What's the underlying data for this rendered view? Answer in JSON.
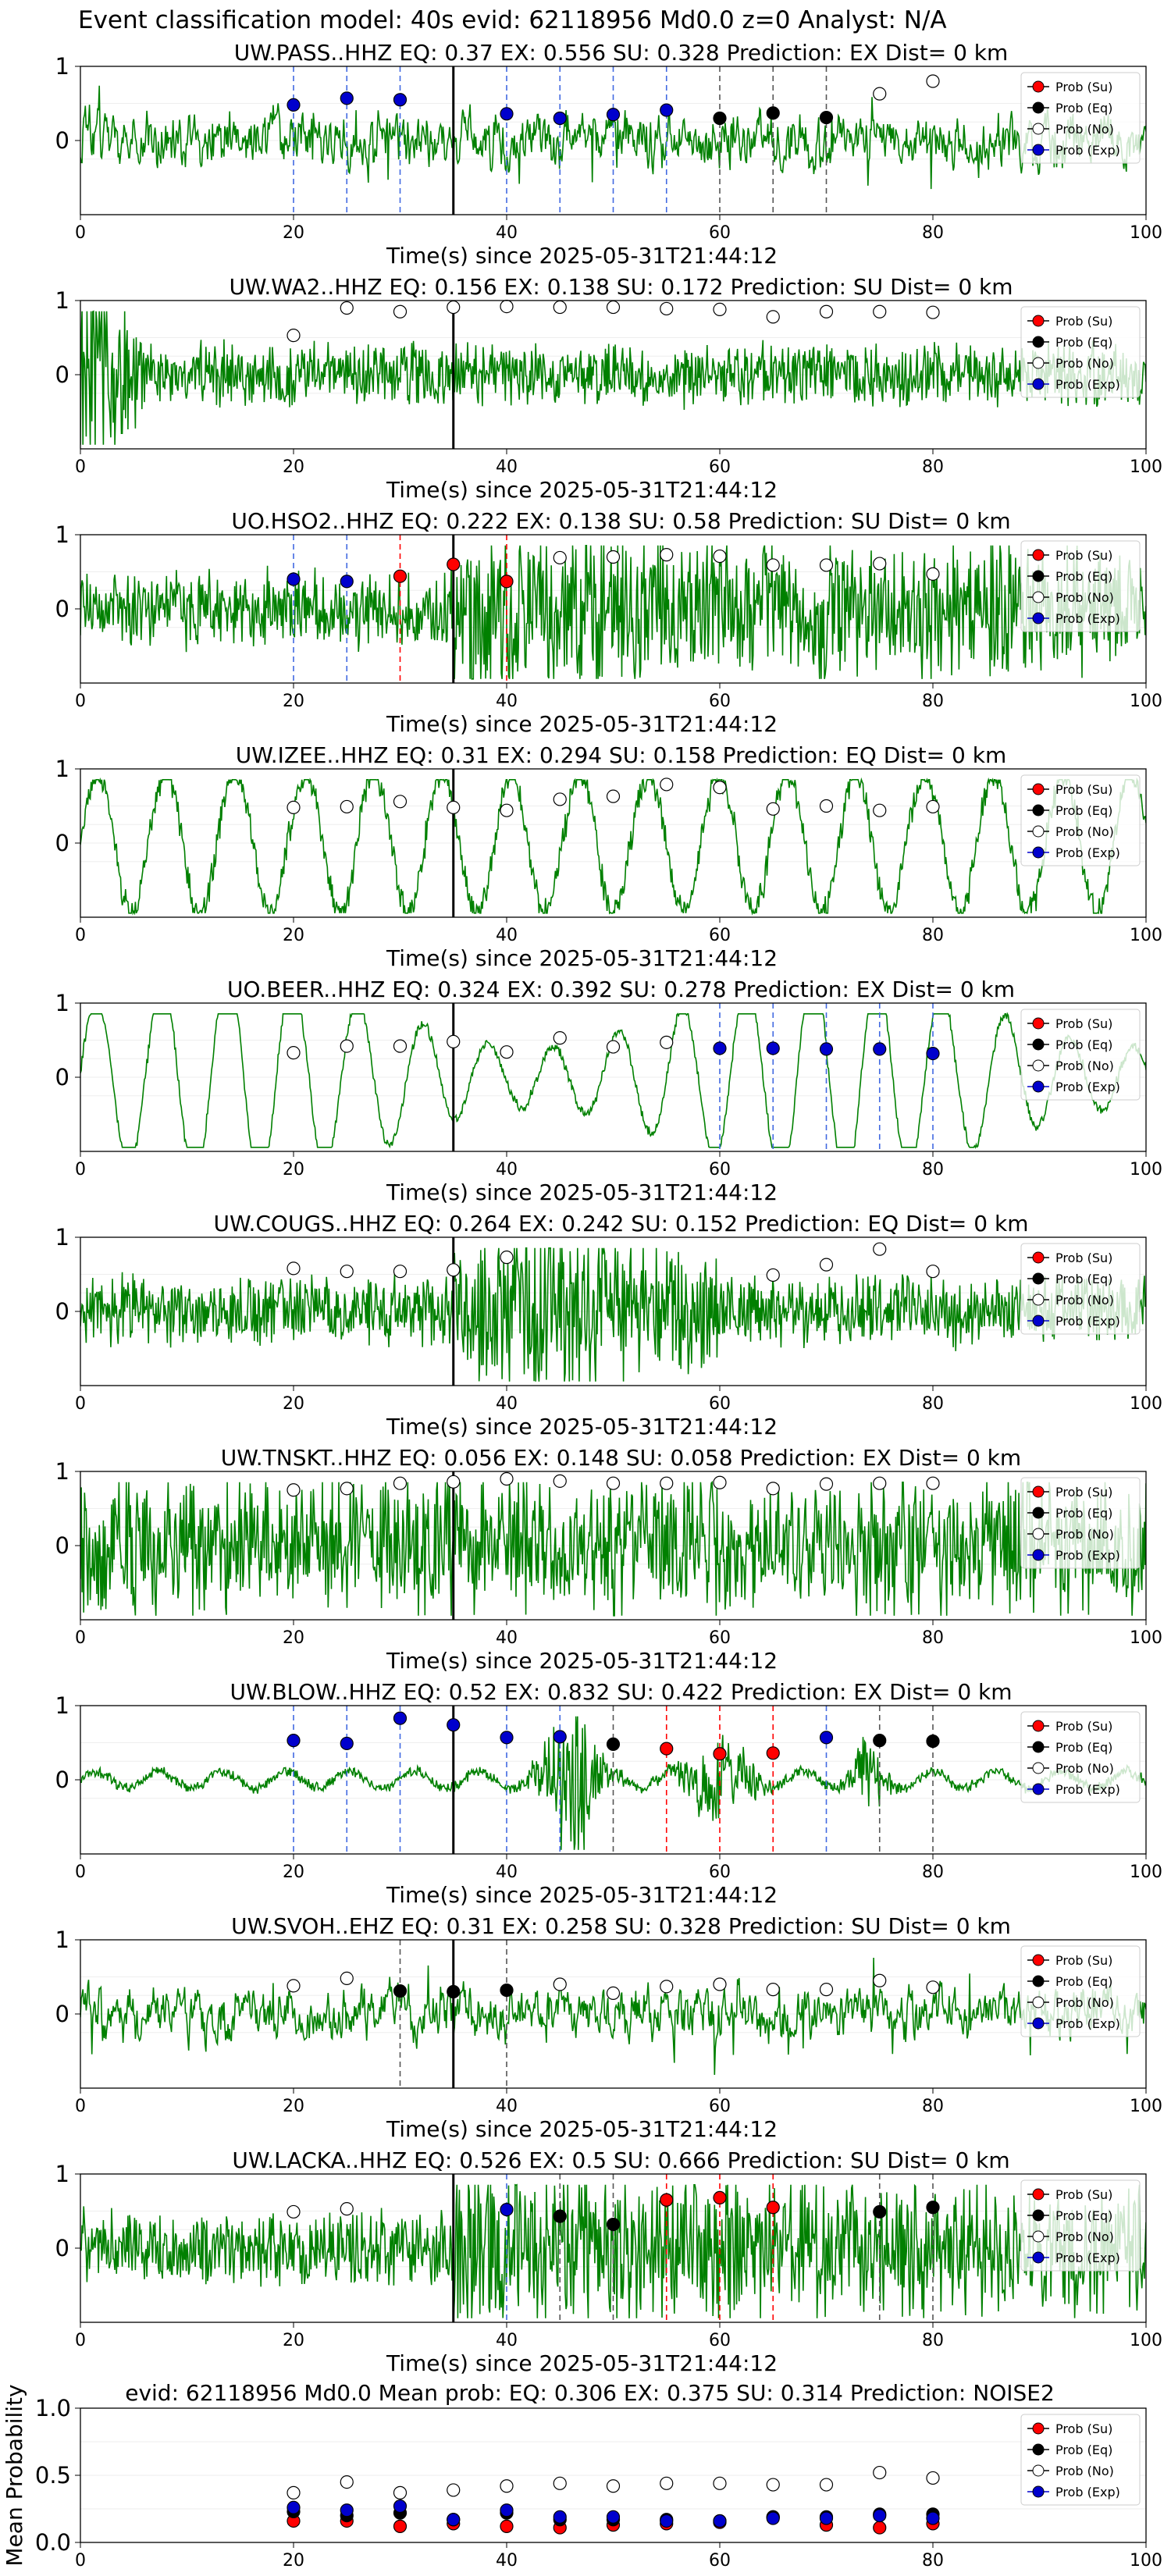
{
  "figure": {
    "suptitle": "Event classification model: 40s evid: 62118956 Md0.0 z=0 Analyst: N/A",
    "xlabel": "Time(s) since 2025-05-31T21:44:12",
    "legend": [
      "Prob (Su)",
      "Prob (Eq)",
      "Prob (No)",
      "Prob (Exp)"
    ],
    "colors": {
      "trace": "#008000",
      "su": "#ff0000",
      "eq": "#000000",
      "no": "#ffffff",
      "exp": "#0000cd",
      "exp_line": "#4169e1",
      "onset": "#000000"
    }
  },
  "chart_data": [
    {
      "type": "line",
      "title": "UW.PASS..HHZ   EQ: 0.37  EX: 0.556  SU: 0.328    Prediction: EX    Dist= 0 km",
      "xlim": [
        0,
        100
      ],
      "yticks": [
        "1",
        "0"
      ],
      "xticks": [
        "0",
        "20",
        "40",
        "60",
        "80",
        "100"
      ],
      "onset": 35,
      "seed": 11,
      "style": "spiky",
      "amp": 0.22,
      "points": [
        {
          "x": 20,
          "y": 0.48,
          "c": "exp"
        },
        {
          "x": 25,
          "y": 0.57,
          "c": "exp"
        },
        {
          "x": 30,
          "y": 0.55,
          "c": "exp"
        },
        {
          "x": 40,
          "y": 0.36,
          "c": "exp"
        },
        {
          "x": 45,
          "y": 0.3,
          "c": "exp"
        },
        {
          "x": 50,
          "y": 0.35,
          "c": "exp"
        },
        {
          "x": 55,
          "y": 0.41,
          "c": "exp"
        },
        {
          "x": 60,
          "y": 0.3,
          "c": "eq"
        },
        {
          "x": 65,
          "y": 0.37,
          "c": "eq"
        },
        {
          "x": 70,
          "y": 0.31,
          "c": "eq"
        },
        {
          "x": 75,
          "y": 0.63,
          "c": "no"
        },
        {
          "x": 80,
          "y": 0.8,
          "c": "no"
        }
      ]
    },
    {
      "type": "line",
      "title": "UW.WA2..HHZ   EQ: 0.156  EX: 0.138  SU: 0.172    Prediction: SU    Dist= 0 km",
      "xlim": [
        0,
        100
      ],
      "yticks": [
        "1",
        "0"
      ],
      "xticks": [
        "0",
        "20",
        "40",
        "60",
        "80",
        "100"
      ],
      "onset": 35,
      "seed": 23,
      "style": "decay",
      "amp": 0.2,
      "points": [
        {
          "x": 20,
          "y": 0.53,
          "c": "no"
        },
        {
          "x": 25,
          "y": 0.9,
          "c": "no"
        },
        {
          "x": 30,
          "y": 0.85,
          "c": "no"
        },
        {
          "x": 35,
          "y": 0.91,
          "c": "no"
        },
        {
          "x": 40,
          "y": 0.92,
          "c": "no"
        },
        {
          "x": 45,
          "y": 0.91,
          "c": "no"
        },
        {
          "x": 50,
          "y": 0.91,
          "c": "no"
        },
        {
          "x": 55,
          "y": 0.89,
          "c": "no"
        },
        {
          "x": 60,
          "y": 0.88,
          "c": "no"
        },
        {
          "x": 65,
          "y": 0.78,
          "c": "no"
        },
        {
          "x": 70,
          "y": 0.85,
          "c": "no"
        },
        {
          "x": 75,
          "y": 0.85,
          "c": "no"
        },
        {
          "x": 80,
          "y": 0.84,
          "c": "no"
        }
      ]
    },
    {
      "type": "line",
      "title": "UO.HSO2..HHZ   EQ: 0.222  EX: 0.138  SU: 0.58    Prediction: SU    Dist= 0 km",
      "xlim": [
        0,
        100
      ],
      "yticks": [
        "1",
        "0"
      ],
      "xticks": [
        "0",
        "20",
        "40",
        "60",
        "80",
        "100"
      ],
      "onset": 35,
      "seed": 37,
      "style": "burst",
      "amp": 0.25,
      "points": [
        {
          "x": 20,
          "y": 0.4,
          "c": "exp"
        },
        {
          "x": 25,
          "y": 0.37,
          "c": "exp"
        },
        {
          "x": 30,
          "y": 0.44,
          "c": "su"
        },
        {
          "x": 35,
          "y": 0.6,
          "c": "su"
        },
        {
          "x": 40,
          "y": 0.37,
          "c": "su"
        },
        {
          "x": 45,
          "y": 0.69,
          "c": "no"
        },
        {
          "x": 50,
          "y": 0.7,
          "c": "no"
        },
        {
          "x": 55,
          "y": 0.73,
          "c": "no"
        },
        {
          "x": 60,
          "y": 0.71,
          "c": "no"
        },
        {
          "x": 65,
          "y": 0.59,
          "c": "no"
        },
        {
          "x": 70,
          "y": 0.59,
          "c": "no"
        },
        {
          "x": 75,
          "y": 0.61,
          "c": "no"
        },
        {
          "x": 80,
          "y": 0.47,
          "c": "no"
        }
      ]
    },
    {
      "type": "line",
      "title": "UW.IZEE..HHZ   EQ: 0.31  EX: 0.294  SU: 0.158    Prediction: EQ    Dist= 0 km",
      "xlim": [
        0,
        100
      ],
      "yticks": [
        "1",
        "0"
      ],
      "xticks": [
        "0",
        "20",
        "40",
        "60",
        "80",
        "100"
      ],
      "onset": 35,
      "seed": 41,
      "style": "wavy",
      "amp": 0.4,
      "points": [
        {
          "x": 20,
          "y": 0.48,
          "c": "no"
        },
        {
          "x": 25,
          "y": 0.49,
          "c": "no"
        },
        {
          "x": 30,
          "y": 0.56,
          "c": "no"
        },
        {
          "x": 35,
          "y": 0.48,
          "c": "no"
        },
        {
          "x": 40,
          "y": 0.44,
          "c": "no"
        },
        {
          "x": 45,
          "y": 0.59,
          "c": "no"
        },
        {
          "x": 50,
          "y": 0.63,
          "c": "no"
        },
        {
          "x": 55,
          "y": 0.79,
          "c": "no"
        },
        {
          "x": 60,
          "y": 0.75,
          "c": "no"
        },
        {
          "x": 65,
          "y": 0.46,
          "c": "no"
        },
        {
          "x": 70,
          "y": 0.5,
          "c": "no"
        },
        {
          "x": 75,
          "y": 0.44,
          "c": "no"
        },
        {
          "x": 80,
          "y": 0.49,
          "c": "no"
        }
      ]
    },
    {
      "type": "line",
      "title": "UO.BEER..HHZ   EQ: 0.324  EX: 0.392  SU: 0.278    Prediction: EX    Dist= 0 km",
      "xlim": [
        0,
        100
      ],
      "yticks": [
        "1",
        "0"
      ],
      "xticks": [
        "0",
        "20",
        "40",
        "60",
        "80",
        "100"
      ],
      "onset": 35,
      "seed": 53,
      "style": "smooth",
      "amp": 0.5,
      "points": [
        {
          "x": 20,
          "y": 0.33,
          "c": "no"
        },
        {
          "x": 25,
          "y": 0.42,
          "c": "no"
        },
        {
          "x": 30,
          "y": 0.42,
          "c": "no"
        },
        {
          "x": 35,
          "y": 0.48,
          "c": "no"
        },
        {
          "x": 40,
          "y": 0.34,
          "c": "no"
        },
        {
          "x": 45,
          "y": 0.53,
          "c": "no"
        },
        {
          "x": 50,
          "y": 0.41,
          "c": "no"
        },
        {
          "x": 55,
          "y": 0.47,
          "c": "no"
        },
        {
          "x": 60,
          "y": 0.39,
          "c": "exp"
        },
        {
          "x": 65,
          "y": 0.39,
          "c": "exp"
        },
        {
          "x": 70,
          "y": 0.38,
          "c": "exp"
        },
        {
          "x": 75,
          "y": 0.38,
          "c": "exp"
        },
        {
          "x": 80,
          "y": 0.32,
          "c": "exp"
        }
      ]
    },
    {
      "type": "line",
      "title": "UW.COUGS..HHZ   EQ: 0.264  EX: 0.242  SU: 0.152    Prediction: EQ    Dist= 0 km",
      "xlim": [
        0,
        100
      ],
      "yticks": [
        "1",
        "0"
      ],
      "xticks": [
        "0",
        "20",
        "40",
        "60",
        "80",
        "100"
      ],
      "onset": 35,
      "seed": 67,
      "style": "event",
      "amp": 0.18,
      "points": [
        {
          "x": 20,
          "y": 0.58,
          "c": "no"
        },
        {
          "x": 25,
          "y": 0.54,
          "c": "no"
        },
        {
          "x": 30,
          "y": 0.54,
          "c": "no"
        },
        {
          "x": 35,
          "y": 0.56,
          "c": "no"
        },
        {
          "x": 40,
          "y": 0.73,
          "c": "no"
        },
        {
          "x": 65,
          "y": 0.49,
          "c": "no"
        },
        {
          "x": 70,
          "y": 0.63,
          "c": "no"
        },
        {
          "x": 75,
          "y": 0.84,
          "c": "no"
        },
        {
          "x": 80,
          "y": 0.54,
          "c": "no"
        }
      ]
    },
    {
      "type": "line",
      "title": "UW.TNSKT..HHZ   EQ: 0.056  EX: 0.148  SU: 0.058    Prediction: EX    Dist= 0 km",
      "xlim": [
        0,
        100
      ],
      "yticks": [
        "1",
        "0"
      ],
      "xticks": [
        "0",
        "20",
        "40",
        "60",
        "80",
        "100"
      ],
      "onset": 35,
      "seed": 79,
      "style": "noise",
      "amp": 0.5,
      "points": [
        {
          "x": 20,
          "y": 0.75,
          "c": "no"
        },
        {
          "x": 25,
          "y": 0.77,
          "c": "no"
        },
        {
          "x": 30,
          "y": 0.84,
          "c": "no"
        },
        {
          "x": 35,
          "y": 0.86,
          "c": "no"
        },
        {
          "x": 40,
          "y": 0.9,
          "c": "no"
        },
        {
          "x": 45,
          "y": 0.87,
          "c": "no"
        },
        {
          "x": 50,
          "y": 0.84,
          "c": "no"
        },
        {
          "x": 55,
          "y": 0.84,
          "c": "no"
        },
        {
          "x": 60,
          "y": 0.85,
          "c": "no"
        },
        {
          "x": 65,
          "y": 0.77,
          "c": "no"
        },
        {
          "x": 70,
          "y": 0.83,
          "c": "no"
        },
        {
          "x": 75,
          "y": 0.84,
          "c": "no"
        },
        {
          "x": 80,
          "y": 0.84,
          "c": "no"
        }
      ]
    },
    {
      "type": "line",
      "title": "UW.BLOW..HHZ   EQ: 0.52  EX: 0.832  SU: 0.422    Prediction: EX    Dist= 0 km",
      "xlim": [
        0,
        100
      ],
      "yticks": [
        "1",
        "0"
      ],
      "xticks": [
        "0",
        "20",
        "40",
        "60",
        "80",
        "100"
      ],
      "onset": 35,
      "seed": 83,
      "style": "quiet",
      "amp": 0.05,
      "points": [
        {
          "x": 20,
          "y": 0.53,
          "c": "exp"
        },
        {
          "x": 25,
          "y": 0.49,
          "c": "exp"
        },
        {
          "x": 30,
          "y": 0.83,
          "c": "exp"
        },
        {
          "x": 35,
          "y": 0.74,
          "c": "exp"
        },
        {
          "x": 40,
          "y": 0.57,
          "c": "exp"
        },
        {
          "x": 45,
          "y": 0.58,
          "c": "exp"
        },
        {
          "x": 50,
          "y": 0.48,
          "c": "eq"
        },
        {
          "x": 55,
          "y": 0.42,
          "c": "su"
        },
        {
          "x": 60,
          "y": 0.35,
          "c": "su"
        },
        {
          "x": 65,
          "y": 0.36,
          "c": "su"
        },
        {
          "x": 70,
          "y": 0.57,
          "c": "exp"
        },
        {
          "x": 75,
          "y": 0.53,
          "c": "eq"
        },
        {
          "x": 80,
          "y": 0.52,
          "c": "eq"
        }
      ]
    },
    {
      "type": "line",
      "title": "UW.SVOH..EHZ   EQ: 0.31  EX: 0.258  SU: 0.328    Prediction: SU    Dist= 0 km",
      "xlim": [
        0,
        100
      ],
      "yticks": [
        "1",
        "0"
      ],
      "xticks": [
        "0",
        "20",
        "40",
        "60",
        "80",
        "100"
      ],
      "onset": 35,
      "seed": 97,
      "style": "spiky",
      "amp": 0.16,
      "points": [
        {
          "x": 20,
          "y": 0.38,
          "c": "no"
        },
        {
          "x": 25,
          "y": 0.48,
          "c": "no"
        },
        {
          "x": 30,
          "y": 0.31,
          "c": "eq"
        },
        {
          "x": 35,
          "y": 0.3,
          "c": "eq"
        },
        {
          "x": 40,
          "y": 0.32,
          "c": "eq"
        },
        {
          "x": 45,
          "y": 0.4,
          "c": "no"
        },
        {
          "x": 50,
          "y": 0.28,
          "c": "no"
        },
        {
          "x": 55,
          "y": 0.37,
          "c": "no"
        },
        {
          "x": 60,
          "y": 0.4,
          "c": "no"
        },
        {
          "x": 65,
          "y": 0.33,
          "c": "no"
        },
        {
          "x": 70,
          "y": 0.33,
          "c": "no"
        },
        {
          "x": 75,
          "y": 0.45,
          "c": "no"
        },
        {
          "x": 80,
          "y": 0.36,
          "c": "no"
        }
      ]
    },
    {
      "type": "line",
      "title": "UW.LACKA..HHZ   EQ: 0.526  EX: 0.5  SU: 0.666    Prediction: SU    Dist= 0 km",
      "xlim": [
        0,
        100
      ],
      "yticks": [
        "1",
        "0"
      ],
      "xticks": [
        "0",
        "20",
        "40",
        "60",
        "80",
        "100"
      ],
      "onset": 35,
      "seed": 101,
      "style": "burst",
      "amp": 0.2,
      "points": [
        {
          "x": 20,
          "y": 0.49,
          "c": "no"
        },
        {
          "x": 25,
          "y": 0.53,
          "c": "no"
        },
        {
          "x": 40,
          "y": 0.52,
          "c": "exp"
        },
        {
          "x": 45,
          "y": 0.43,
          "c": "eq"
        },
        {
          "x": 50,
          "y": 0.32,
          "c": "eq"
        },
        {
          "x": 55,
          "y": 0.65,
          "c": "su"
        },
        {
          "x": 60,
          "y": 0.68,
          "c": "su"
        },
        {
          "x": 65,
          "y": 0.55,
          "c": "su"
        },
        {
          "x": 75,
          "y": 0.49,
          "c": "eq"
        },
        {
          "x": 80,
          "y": 0.55,
          "c": "eq"
        }
      ]
    },
    {
      "type": "scatter",
      "title": "evid: 62118956   Md0.0    Mean prob:    EQ: 0.306   EX: 0.375   SU: 0.314    Prediction: NOISE2",
      "ylabel": "Mean Probability",
      "xlim": [
        0,
        100
      ],
      "ylim": [
        0,
        1
      ],
      "yticks": [
        "1.0",
        "0.5",
        "0.0"
      ],
      "xticks": [
        "0",
        "20",
        "40",
        "60",
        "80",
        "100"
      ],
      "x": [
        20,
        25,
        30,
        35,
        40,
        45,
        50,
        55,
        60,
        65,
        70,
        75,
        80
      ],
      "series": [
        {
          "name": "Prob (Su)",
          "c": "su",
          "values": [
            0.16,
            0.16,
            0.12,
            0.14,
            0.12,
            0.11,
            0.13,
            0.14,
            0.15,
            0.19,
            0.13,
            0.11,
            0.14
          ]
        },
        {
          "name": "Prob (Eq)",
          "c": "eq",
          "values": [
            0.23,
            0.2,
            0.22,
            0.17,
            0.22,
            0.17,
            0.17,
            0.17,
            0.16,
            0.19,
            0.19,
            0.21,
            0.21
          ]
        },
        {
          "name": "Prob (No)",
          "c": "no",
          "values": [
            0.37,
            0.45,
            0.37,
            0.39,
            0.42,
            0.44,
            0.42,
            0.44,
            0.44,
            0.43,
            0.43,
            0.52,
            0.48
          ]
        },
        {
          "name": "Prob (Exp)",
          "c": "exp",
          "values": [
            0.26,
            0.24,
            0.27,
            0.17,
            0.24,
            0.19,
            0.19,
            0.16,
            0.16,
            0.18,
            0.18,
            0.2,
            0.18
          ]
        }
      ]
    }
  ]
}
